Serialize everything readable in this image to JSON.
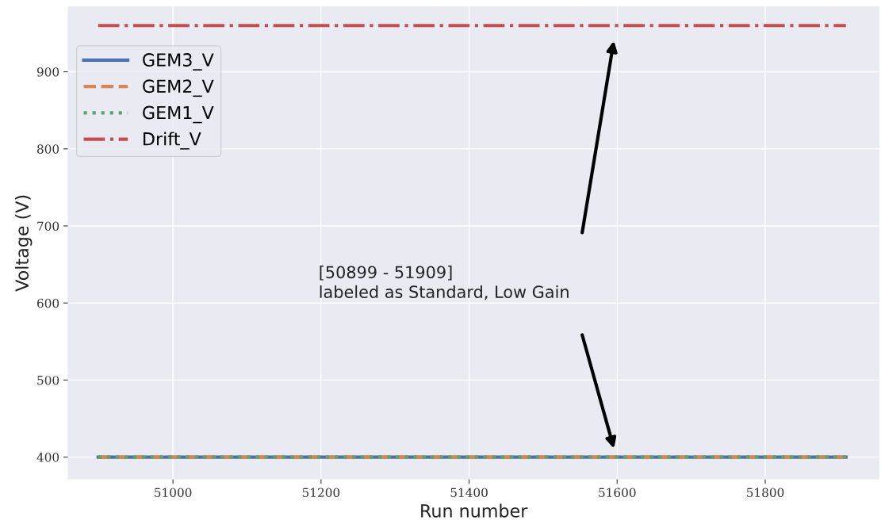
{
  "chart_data": {
    "type": "line",
    "xlabel": "Run number",
    "ylabel": "Voltage (V)",
    "xlim": [
      50858,
      51954
    ],
    "xticks": [
      51000,
      51200,
      51400,
      51600,
      51800
    ],
    "ylim": [
      371,
      985
    ],
    "yticks": [
      400,
      500,
      600,
      700,
      800,
      900
    ],
    "grid": true,
    "legend": "top left",
    "x": [
      50899,
      51909
    ],
    "series": [
      {
        "name": "GEM3_V",
        "color": "#4c72b0",
        "line_style": "solid",
        "values": [
          400,
          400
        ]
      },
      {
        "name": "GEM2_V",
        "color": "#dd8452",
        "line_style": "dashed",
        "values": [
          400,
          400
        ]
      },
      {
        "name": "GEM1_V",
        "color": "#55a868",
        "line_style": "dotted",
        "values": [
          400,
          400
        ]
      },
      {
        "name": "Drift_V",
        "color": "#c44e52",
        "line_style": "dashdot",
        "values": [
          960,
          960
        ]
      }
    ],
    "annotations": [
      "[50899 - 51909]\nlabeled as Standard, Low Gain"
    ]
  }
}
